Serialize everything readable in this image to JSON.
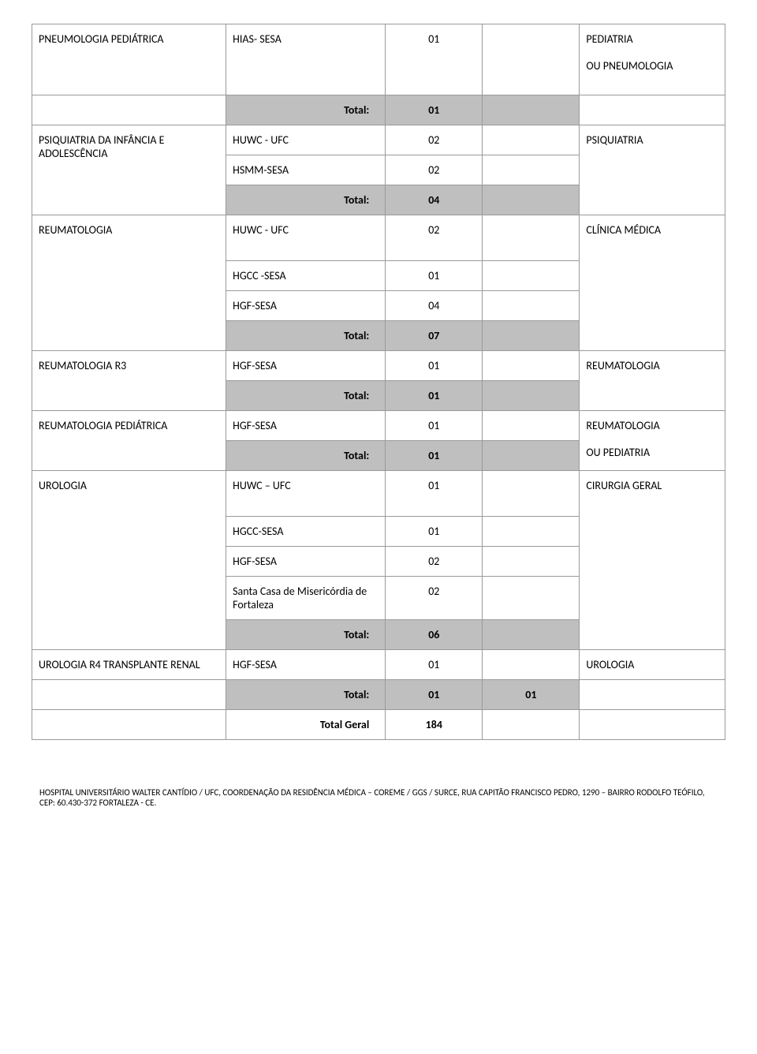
{
  "rows": [
    {
      "c1": "PNEUMOLOGIA PEDIÁTRICA",
      "c2": "HIAS- SESA",
      "c3": "01",
      "c5": "PEDIATRIA\n\nOU PNEUMOLOGIA",
      "tall": true
    },
    {
      "type": "total",
      "label": "Total:",
      "val": "01"
    },
    {
      "c1": "PSIQUIATRIA DA INFÂNCIA E ADOLESCÊNCIA",
      "c2": "HUWC - UFC",
      "c3": "02",
      "c5": "PSIQUIATRIA",
      "rowspan1": 3,
      "rowspan5": 3
    },
    {
      "c2": "HSMM-SESA",
      "c3": "02"
    },
    {
      "type": "total",
      "label": "Total:",
      "val": "04",
      "merged": true
    },
    {
      "c1": "REUMATOLOGIA",
      "c2": "HUWC - UFC",
      "c3": "02",
      "c5": "CLÍNICA MÉDICA",
      "rowspan1": 4,
      "rowspan5": 4,
      "tall2": true
    },
    {
      "c2": "HGCC -SESA",
      "c3": "01"
    },
    {
      "c2": "HGF-SESA",
      "c3": "04"
    },
    {
      "type": "total",
      "label": "Total:",
      "val": "07",
      "merged": true
    },
    {
      "c1": "REUMATOLOGIA R3",
      "c2": "HGF-SESA",
      "c3": "01",
      "c5": "REUMATOLOGIA",
      "rowspan1": 2,
      "rowspan5": 2
    },
    {
      "type": "total",
      "label": "Total:",
      "val": "01",
      "merged": true
    },
    {
      "c1": "REUMATOLOGIA PEDIÁTRICA",
      "c2": "HGF-SESA",
      "c3": "01",
      "c5": "REUMATOLOGIA\n\nOU PEDIATRIA",
      "rowspan1": 2,
      "rowspan5": 2
    },
    {
      "type": "total",
      "label": "Total:",
      "val": "01",
      "merged": true
    },
    {
      "c1": "UROLOGIA",
      "c2": "HUWC – UFC",
      "c3": "01",
      "c5": "CIRURGIA GERAL",
      "rowspan1": 5,
      "rowspan5": 5,
      "tall2": true
    },
    {
      "c2": "HGCC-SESA",
      "c3": "01"
    },
    {
      "c2": "HGF-SESA",
      "c3": "02"
    },
    {
      "c2": "Santa Casa de Misericórdia de Fortaleza",
      "c3": "02"
    },
    {
      "type": "total",
      "label": "Total:",
      "val": "06",
      "merged": true
    },
    {
      "c1": "UROLOGIA R4 TRANSPLANTE RENAL",
      "c2": "HGF-SESA",
      "c3": "01",
      "c5": "UROLOGIA"
    },
    {
      "type": "total",
      "label": "Total:",
      "val": "01",
      "val2": "01"
    },
    {
      "type": "grand",
      "label": "Total Geral",
      "val": "184"
    }
  ],
  "footer": "HOSPITAL UNIVERSITÁRIO WALTER CANTÍDIO / UFC, COORDENAÇÃO DA RESIDÊNCIA MÉDICA – COREME / GGS / SURCE, RUA CAPITÃO FRANCISCO PEDRO, 1290 – BAIRRO RODOLFO TEÓFILO, CEP: 60.430-372 FORTALEZA - CE."
}
